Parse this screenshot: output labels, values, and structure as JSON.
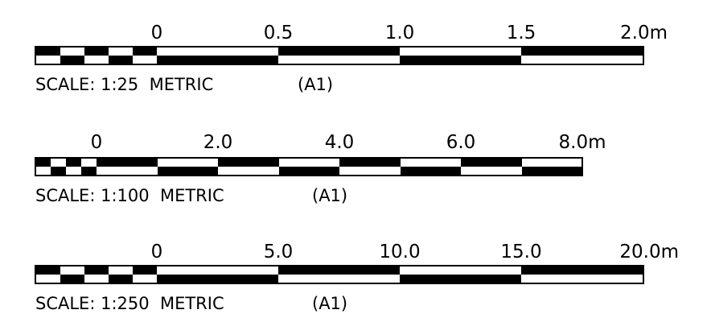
{
  "scales": [
    {
      "tick_labels": [
        "0",
        "0.5",
        "1.0",
        "1.5",
        "2.0m"
      ],
      "caption": {
        "ratio": "SCALE: 1:25  METRIC",
        "sheet": "(A1)"
      }
    },
    {
      "tick_labels": [
        "0",
        "2.0",
        "4.0",
        "6.0",
        "8.0m"
      ],
      "caption": {
        "ratio": "SCALE: 1:100  METRIC",
        "sheet": "(A1)"
      }
    },
    {
      "tick_labels": [
        "0",
        "5.0",
        "10.0",
        "15.0",
        "20.0m"
      ],
      "caption": {
        "ratio": "SCALE: 1:250  METRIC",
        "sheet": "(A1)"
      }
    }
  ],
  "colors": {
    "ink": "#000000",
    "paper": "#ffffff"
  }
}
